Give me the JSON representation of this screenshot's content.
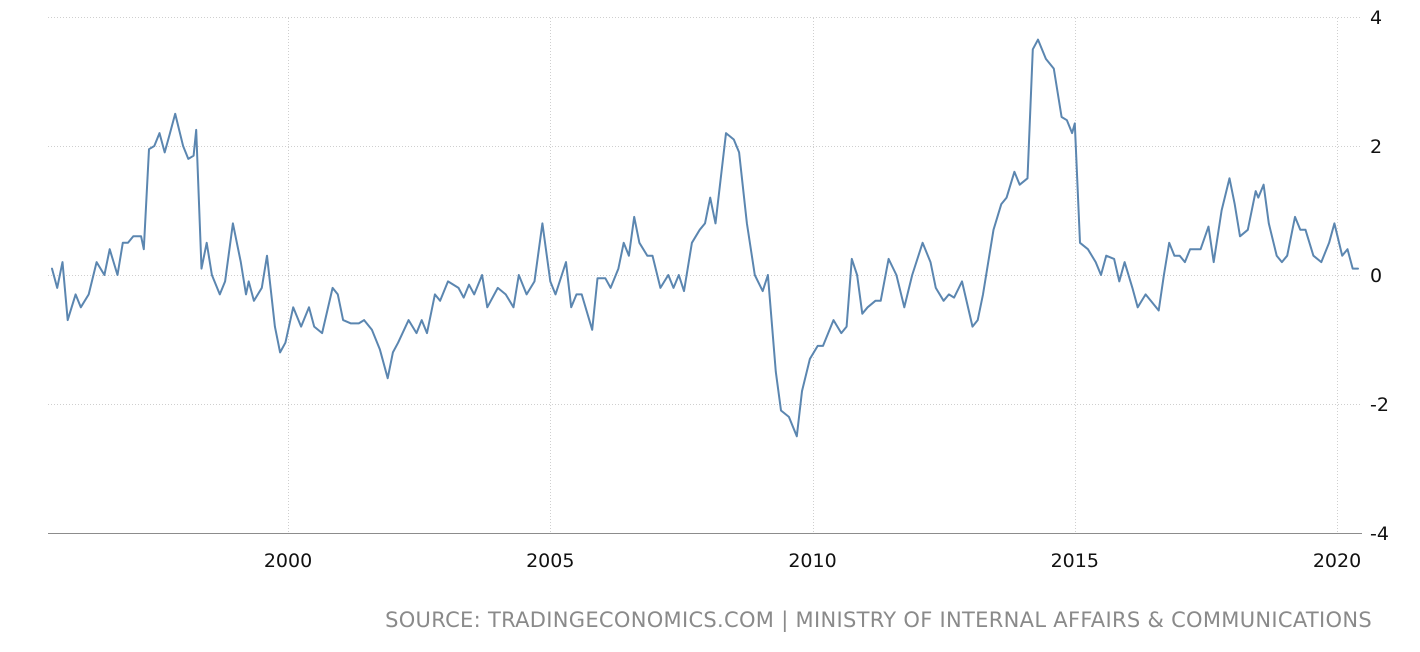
{
  "source_text": "SOURCE: TRADINGECONOMICS.COM | MINISTRY OF INTERNAL AFFAIRS & COMMUNICATIONS",
  "chart_data": {
    "type": "line",
    "title": "",
    "xlabel": "",
    "ylabel": "",
    "xlim": [
      1995.4,
      2020.6
    ],
    "ylim": [
      -4,
      4
    ],
    "x_ticks": [
      2000,
      2005,
      2010,
      2015,
      2020
    ],
    "x_tick_labels": [
      "2000",
      "2005",
      "2010",
      "2015",
      "2020"
    ],
    "y_ticks": [
      4,
      2,
      0,
      -2,
      -4
    ],
    "y_tick_labels": [
      "4",
      "2",
      "0",
      "-2",
      "-4"
    ],
    "y_axis_side": "right",
    "grid": true,
    "line_color": "#5b86b0",
    "series": [
      {
        "values": [
          [
            1995.5,
            0.1
          ],
          [
            1995.6,
            -0.2
          ],
          [
            1995.7,
            0.2
          ],
          [
            1995.8,
            -0.7
          ],
          [
            1995.95,
            -0.3
          ],
          [
            1996.05,
            -0.5
          ],
          [
            1996.2,
            -0.3
          ],
          [
            1996.35,
            0.2
          ],
          [
            1996.5,
            0.0
          ],
          [
            1996.6,
            0.4
          ],
          [
            1996.75,
            0.0
          ],
          [
            1996.85,
            0.5
          ],
          [
            1996.95,
            0.5
          ],
          [
            1997.05,
            0.6
          ],
          [
            1997.2,
            0.6
          ],
          [
            1997.25,
            0.4
          ],
          [
            1997.35,
            1.95
          ],
          [
            1997.45,
            2.0
          ],
          [
            1997.55,
            2.2
          ],
          [
            1997.65,
            1.9
          ],
          [
            1997.75,
            2.2
          ],
          [
            1997.85,
            2.5
          ],
          [
            1998.0,
            2.0
          ],
          [
            1998.1,
            1.8
          ],
          [
            1998.2,
            1.85
          ],
          [
            1998.25,
            2.25
          ],
          [
            1998.35,
            0.1
          ],
          [
            1998.45,
            0.5
          ],
          [
            1998.55,
            0.0
          ],
          [
            1998.7,
            -0.3
          ],
          [
            1998.8,
            -0.1
          ],
          [
            1998.95,
            0.8
          ],
          [
            1999.1,
            0.2
          ],
          [
            1999.2,
            -0.3
          ],
          [
            1999.25,
            -0.1
          ],
          [
            1999.35,
            -0.4
          ],
          [
            1999.5,
            -0.2
          ],
          [
            1999.6,
            0.3
          ],
          [
            1999.75,
            -0.8
          ],
          [
            1999.85,
            -1.2
          ],
          [
            1999.95,
            -1.05
          ],
          [
            2000.1,
            -0.5
          ],
          [
            2000.25,
            -0.8
          ],
          [
            2000.4,
            -0.5
          ],
          [
            2000.5,
            -0.8
          ],
          [
            2000.65,
            -0.9
          ],
          [
            2000.85,
            -0.2
          ],
          [
            2000.95,
            -0.3
          ],
          [
            2001.05,
            -0.7
          ],
          [
            2001.2,
            -0.75
          ],
          [
            2001.35,
            -0.75
          ],
          [
            2001.45,
            -0.7
          ],
          [
            2001.6,
            -0.85
          ],
          [
            2001.75,
            -1.15
          ],
          [
            2001.9,
            -1.6
          ],
          [
            2002.0,
            -1.2
          ],
          [
            2002.1,
            -1.05
          ],
          [
            2002.3,
            -0.7
          ],
          [
            2002.45,
            -0.9
          ],
          [
            2002.55,
            -0.7
          ],
          [
            2002.65,
            -0.9
          ],
          [
            2002.8,
            -0.3
          ],
          [
            2002.9,
            -0.4
          ],
          [
            2003.05,
            -0.1
          ],
          [
            2003.25,
            -0.2
          ],
          [
            2003.35,
            -0.35
          ],
          [
            2003.45,
            -0.15
          ],
          [
            2003.55,
            -0.3
          ],
          [
            2003.7,
            0.0
          ],
          [
            2003.8,
            -0.5
          ],
          [
            2004.0,
            -0.2
          ],
          [
            2004.15,
            -0.3
          ],
          [
            2004.3,
            -0.5
          ],
          [
            2004.4,
            0.0
          ],
          [
            2004.55,
            -0.3
          ],
          [
            2004.7,
            -0.1
          ],
          [
            2004.85,
            0.8
          ],
          [
            2005.0,
            -0.1
          ],
          [
            2005.1,
            -0.3
          ],
          [
            2005.3,
            0.2
          ],
          [
            2005.4,
            -0.5
          ],
          [
            2005.5,
            -0.3
          ],
          [
            2005.6,
            -0.3
          ],
          [
            2005.8,
            -0.85
          ],
          [
            2005.9,
            -0.05
          ],
          [
            2006.05,
            -0.05
          ],
          [
            2006.15,
            -0.2
          ],
          [
            2006.3,
            0.1
          ],
          [
            2006.4,
            0.5
          ],
          [
            2006.5,
            0.3
          ],
          [
            2006.6,
            0.9
          ],
          [
            2006.7,
            0.5
          ],
          [
            2006.85,
            0.3
          ],
          [
            2006.95,
            0.3
          ],
          [
            2007.1,
            -0.2
          ],
          [
            2007.25,
            0.0
          ],
          [
            2007.35,
            -0.2
          ],
          [
            2007.45,
            0.0
          ],
          [
            2007.55,
            -0.25
          ],
          [
            2007.7,
            0.5
          ],
          [
            2007.85,
            0.7
          ],
          [
            2007.95,
            0.8
          ],
          [
            2008.05,
            1.2
          ],
          [
            2008.15,
            0.8
          ],
          [
            2008.35,
            2.2
          ],
          [
            2008.5,
            2.1
          ],
          [
            2008.6,
            1.9
          ],
          [
            2008.75,
            0.8
          ],
          [
            2008.9,
            0.0
          ],
          [
            2009.05,
            -0.25
          ],
          [
            2009.15,
            0.0
          ],
          [
            2009.3,
            -1.5
          ],
          [
            2009.4,
            -2.1
          ],
          [
            2009.55,
            -2.2
          ],
          [
            2009.7,
            -2.5
          ],
          [
            2009.8,
            -1.8
          ],
          [
            2009.95,
            -1.3
          ],
          [
            2010.1,
            -1.1
          ],
          [
            2010.2,
            -1.1
          ],
          [
            2010.4,
            -0.7
          ],
          [
            2010.55,
            -0.9
          ],
          [
            2010.65,
            -0.8
          ],
          [
            2010.75,
            0.25
          ],
          [
            2010.85,
            0.0
          ],
          [
            2010.95,
            -0.6
          ],
          [
            2011.05,
            -0.5
          ],
          [
            2011.2,
            -0.4
          ],
          [
            2011.3,
            -0.4
          ],
          [
            2011.45,
            0.25
          ],
          [
            2011.6,
            0.0
          ],
          [
            2011.75,
            -0.5
          ],
          [
            2011.9,
            0.0
          ],
          [
            2012.1,
            0.5
          ],
          [
            2012.25,
            0.2
          ],
          [
            2012.35,
            -0.2
          ],
          [
            2012.5,
            -0.4
          ],
          [
            2012.6,
            -0.3
          ],
          [
            2012.7,
            -0.35
          ],
          [
            2012.85,
            -0.1
          ],
          [
            2013.05,
            -0.8
          ],
          [
            2013.15,
            -0.7
          ],
          [
            2013.25,
            -0.3
          ],
          [
            2013.45,
            0.7
          ],
          [
            2013.6,
            1.1
          ],
          [
            2013.7,
            1.2
          ],
          [
            2013.85,
            1.6
          ],
          [
            2013.95,
            1.4
          ],
          [
            2014.1,
            1.5
          ],
          [
            2014.2,
            3.5
          ],
          [
            2014.3,
            3.65
          ],
          [
            2014.45,
            3.35
          ],
          [
            2014.6,
            3.2
          ],
          [
            2014.75,
            2.45
          ],
          [
            2014.85,
            2.4
          ],
          [
            2014.95,
            2.2
          ],
          [
            2015.0,
            2.35
          ],
          [
            2015.1,
            0.5
          ],
          [
            2015.25,
            0.4
          ],
          [
            2015.4,
            0.2
          ],
          [
            2015.5,
            0.0
          ],
          [
            2015.6,
            0.3
          ],
          [
            2015.75,
            0.25
          ],
          [
            2015.85,
            -0.1
          ],
          [
            2015.95,
            0.2
          ],
          [
            2016.1,
            -0.2
          ],
          [
            2016.2,
            -0.5
          ],
          [
            2016.35,
            -0.3
          ],
          [
            2016.45,
            -0.4
          ],
          [
            2016.6,
            -0.55
          ],
          [
            2016.7,
            0.0
          ],
          [
            2016.8,
            0.5
          ],
          [
            2016.9,
            0.3
          ],
          [
            2017.0,
            0.3
          ],
          [
            2017.1,
            0.2
          ],
          [
            2017.2,
            0.4
          ],
          [
            2017.4,
            0.4
          ],
          [
            2017.55,
            0.75
          ],
          [
            2017.65,
            0.2
          ],
          [
            2017.8,
            1.0
          ],
          [
            2017.95,
            1.5
          ],
          [
            2018.05,
            1.1
          ],
          [
            2018.15,
            0.6
          ],
          [
            2018.3,
            0.7
          ],
          [
            2018.45,
            1.3
          ],
          [
            2018.5,
            1.2
          ],
          [
            2018.6,
            1.4
          ],
          [
            2018.7,
            0.8
          ],
          [
            2018.85,
            0.3
          ],
          [
            2018.95,
            0.2
          ],
          [
            2019.05,
            0.3
          ],
          [
            2019.2,
            0.9
          ],
          [
            2019.3,
            0.7
          ],
          [
            2019.4,
            0.7
          ],
          [
            2019.55,
            0.3
          ],
          [
            2019.7,
            0.2
          ],
          [
            2019.85,
            0.5
          ],
          [
            2019.95,
            0.8
          ],
          [
            2020.1,
            0.3
          ],
          [
            2020.2,
            0.4
          ],
          [
            2020.3,
            0.1
          ],
          [
            2020.4,
            0.1
          ]
        ]
      }
    ]
  }
}
